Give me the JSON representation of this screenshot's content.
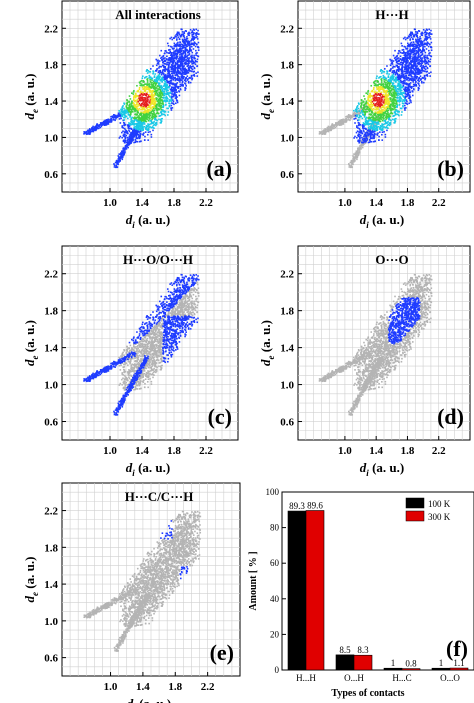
{
  "panels": [
    {
      "title": "All interactions",
      "label": "(a)",
      "highlight": "all"
    },
    {
      "title": "H···H",
      "label": "(b)",
      "highlight": "HH"
    },
    {
      "title": "H···O/O···H",
      "label": "(c)",
      "highlight": "OH"
    },
    {
      "title": "O···O",
      "label": "(d)",
      "highlight": "OO"
    },
    {
      "title": "H···C/C···H",
      "label": "(e)",
      "highlight": "CH"
    }
  ],
  "fingerprint_axes": {
    "xlabel": "d_i (a. u.)",
    "ylabel": "d_e (a. u.)",
    "xticks": [
      "1.0",
      "1.4",
      "1.8",
      "2.2"
    ],
    "yticks": [
      "0.6",
      "1.0",
      "1.4",
      "1.8",
      "2.2"
    ],
    "xlim": [
      0.4,
      2.6
    ],
    "ylim": [
      0.4,
      2.5
    ]
  },
  "chart_data": {
    "type": "bar",
    "label": "(f)",
    "categories": [
      "H...H",
      "O...H",
      "H...C",
      "O...O"
    ],
    "series": [
      {
        "name": "100 K",
        "values": [
          89.3,
          8.5,
          1,
          1
        ],
        "labels": [
          "89.3",
          "8.5",
          "1",
          "1"
        ],
        "color": "#000000"
      },
      {
        "name": "300 K",
        "values": [
          89.6,
          8.3,
          0.8,
          1.1
        ],
        "labels": [
          "89.6",
          "8.3",
          "0.8",
          "1.1"
        ],
        "color": "#e00000"
      }
    ],
    "xlabel": "Types of contacts",
    "ylabel": "Amount [ % ]",
    "ylim": [
      0,
      100
    ],
    "yticks": [
      "0",
      "20",
      "40",
      "60",
      "80",
      "100"
    ],
    "legend": "top-right"
  },
  "colors": {
    "gray": "#b4b4b4",
    "blue": "#1f3cff",
    "cyan": "#19c8e6",
    "green": "#41d241",
    "yellow": "#f0e628",
    "red": "#e61e1e"
  }
}
